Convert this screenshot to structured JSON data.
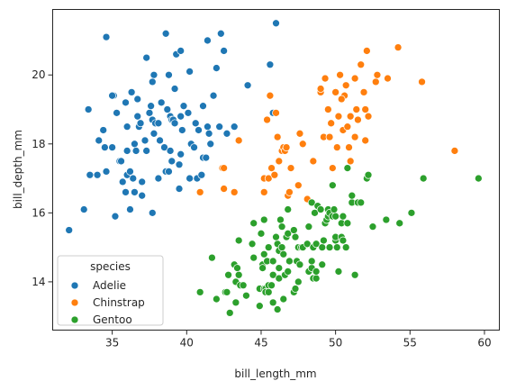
{
  "chart_data": {
    "type": "scatter",
    "xlabel": "bill_length_mm",
    "ylabel": "bill_depth_mm",
    "xlim": [
      31.0,
      61.0
    ],
    "ylim": [
      12.6,
      21.9
    ],
    "xticks": [
      35,
      40,
      45,
      50,
      55,
      60
    ],
    "yticks": [
      14,
      16,
      18,
      20
    ],
    "grid": false,
    "legend": {
      "title": "species",
      "placement": "lower-left",
      "entries": [
        "Adelie",
        "Chinstrap",
        "Gentoo"
      ]
    },
    "series": [
      {
        "name": "Adelie",
        "color": "#1f77b4",
        "points": [
          [
            32.1,
            15.5
          ],
          [
            33.1,
            16.1
          ],
          [
            33.4,
            19.0
          ],
          [
            33.5,
            17.1
          ],
          [
            34.0,
            17.1
          ],
          [
            34.1,
            18.1
          ],
          [
            34.4,
            18.4
          ],
          [
            34.5,
            17.9
          ],
          [
            34.6,
            21.1
          ],
          [
            34.6,
            17.2
          ],
          [
            35.0,
            17.9
          ],
          [
            35.1,
            19.4
          ],
          [
            35.2,
            15.9
          ],
          [
            35.3,
            18.9
          ],
          [
            35.5,
            17.5
          ],
          [
            35.6,
            17.5
          ],
          [
            35.7,
            16.9
          ],
          [
            35.9,
            16.6
          ],
          [
            35.9,
            19.2
          ],
          [
            36.0,
            17.1
          ],
          [
            36.0,
            17.8
          ],
          [
            36.0,
            18.5
          ],
          [
            36.2,
            17.2
          ],
          [
            36.2,
            16.1
          ],
          [
            36.3,
            19.5
          ],
          [
            36.4,
            17.0
          ],
          [
            36.5,
            16.6
          ],
          [
            36.5,
            18.0
          ],
          [
            36.6,
            17.8
          ],
          [
            36.7,
            18.8
          ],
          [
            36.7,
            19.3
          ],
          [
            36.8,
            18.5
          ],
          [
            36.9,
            18.6
          ],
          [
            37.0,
            16.9
          ],
          [
            37.0,
            16.5
          ],
          [
            37.2,
            18.1
          ],
          [
            37.3,
            20.5
          ],
          [
            37.3,
            17.8
          ],
          [
            37.5,
            18.9
          ],
          [
            37.6,
            19.1
          ],
          [
            37.7,
            16.0
          ],
          [
            37.7,
            18.7
          ],
          [
            37.8,
            18.3
          ],
          [
            37.8,
            20.0
          ],
          [
            37.9,
            18.6
          ],
          [
            38.1,
            18.6
          ],
          [
            38.1,
            17.0
          ],
          [
            38.2,
            18.1
          ],
          [
            38.3,
            19.2
          ],
          [
            38.5,
            17.9
          ],
          [
            38.6,
            21.2
          ],
          [
            38.6,
            17.2
          ],
          [
            38.7,
            19.0
          ],
          [
            38.8,
            17.2
          ],
          [
            38.8,
            20.0
          ],
          [
            38.9,
            17.8
          ],
          [
            38.9,
            18.8
          ],
          [
            39.0,
            17.5
          ],
          [
            39.0,
            18.7
          ],
          [
            39.1,
            18.7
          ],
          [
            39.2,
            19.6
          ],
          [
            39.2,
            18.6
          ],
          [
            39.3,
            20.6
          ],
          [
            39.5,
            17.4
          ],
          [
            39.5,
            16.7
          ],
          [
            39.6,
            17.7
          ],
          [
            39.6,
            18.8
          ],
          [
            39.7,
            18.4
          ],
          [
            39.8,
            19.1
          ],
          [
            40.2,
            17.0
          ],
          [
            40.2,
            20.1
          ],
          [
            40.3,
            18.0
          ],
          [
            40.5,
            17.9
          ],
          [
            40.6,
            18.6
          ],
          [
            40.7,
            17.0
          ],
          [
            40.8,
            18.4
          ],
          [
            40.9,
            16.6
          ],
          [
            41.0,
            17.1
          ],
          [
            41.1,
            17.6
          ],
          [
            41.1,
            19.1
          ],
          [
            41.3,
            17.6
          ],
          [
            41.4,
            18.5
          ],
          [
            41.5,
            18.3
          ],
          [
            41.6,
            18.0
          ],
          [
            41.8,
            19.4
          ],
          [
            42.0,
            20.2
          ],
          [
            42.2,
            18.5
          ],
          [
            42.3,
            21.2
          ],
          [
            42.5,
            20.7
          ],
          [
            42.7,
            18.3
          ],
          [
            43.2,
            18.5
          ],
          [
            44.1,
            19.7
          ],
          [
            45.8,
            18.9
          ],
          [
            46.0,
            21.5
          ],
          [
            45.6,
            20.3
          ],
          [
            37.7,
            19.8
          ],
          [
            39.6,
            20.7
          ],
          [
            40.1,
            18.9
          ],
          [
            41.4,
            21.0
          ],
          [
            35.0,
            19.4
          ]
        ]
      },
      {
        "name": "Chinstrap",
        "color": "#ff7f0e",
        "points": [
          [
            40.9,
            16.6
          ],
          [
            42.4,
            17.3
          ],
          [
            42.5,
            16.7
          ],
          [
            42.5,
            17.3
          ],
          [
            43.2,
            16.6
          ],
          [
            43.5,
            18.1
          ],
          [
            45.2,
            16.6
          ],
          [
            45.2,
            17.0
          ],
          [
            45.4,
            18.7
          ],
          [
            45.5,
            17.0
          ],
          [
            45.6,
            19.4
          ],
          [
            45.7,
            17.3
          ],
          [
            45.9,
            17.1
          ],
          [
            46.0,
            18.9
          ],
          [
            46.1,
            18.2
          ],
          [
            46.2,
            17.5
          ],
          [
            46.4,
            17.8
          ],
          [
            46.5,
            17.9
          ],
          [
            46.6,
            17.8
          ],
          [
            46.7,
            17.9
          ],
          [
            46.8,
            16.5
          ],
          [
            46.9,
            16.6
          ],
          [
            47.0,
            17.3
          ],
          [
            47.5,
            16.8
          ],
          [
            47.6,
            18.3
          ],
          [
            48.1,
            16.4
          ],
          [
            48.5,
            17.5
          ],
          [
            49.0,
            19.5
          ],
          [
            49.0,
            19.6
          ],
          [
            49.2,
            18.2
          ],
          [
            49.5,
            19.0
          ],
          [
            49.6,
            18.2
          ],
          [
            49.7,
            18.6
          ],
          [
            49.8,
            17.3
          ],
          [
            50.0,
            19.5
          ],
          [
            50.1,
            17.9
          ],
          [
            50.2,
            18.8
          ],
          [
            50.3,
            20.0
          ],
          [
            50.5,
            18.4
          ],
          [
            50.6,
            19.4
          ],
          [
            50.7,
            19.7
          ],
          [
            50.8,
            18.5
          ],
          [
            50.9,
            17.9
          ],
          [
            51.0,
            18.8
          ],
          [
            51.3,
            18.2
          ],
          [
            51.4,
            19.0
          ],
          [
            51.5,
            18.7
          ],
          [
            51.7,
            20.3
          ],
          [
            51.9,
            19.5
          ],
          [
            52.0,
            18.1
          ],
          [
            52.0,
            19.0
          ],
          [
            52.2,
            18.8
          ],
          [
            52.7,
            19.8
          ],
          [
            53.5,
            19.9
          ],
          [
            54.2,
            20.8
          ],
          [
            55.8,
            19.8
          ],
          [
            58.0,
            17.8
          ],
          [
            49.3,
            19.9
          ],
          [
            50.4,
            19.3
          ],
          [
            52.8,
            20.0
          ],
          [
            51.3,
            19.9
          ],
          [
            52.1,
            20.7
          ],
          [
            51.0,
            17.5
          ],
          [
            47.8,
            18.0
          ]
        ]
      },
      {
        "name": "Gentoo",
        "color": "#2ca02c",
        "points": [
          [
            40.9,
            13.7
          ],
          [
            41.7,
            14.7
          ],
          [
            42.0,
            13.5
          ],
          [
            42.6,
            13.7
          ],
          [
            42.7,
            13.7
          ],
          [
            42.8,
            14.2
          ],
          [
            42.9,
            13.1
          ],
          [
            43.2,
            14.5
          ],
          [
            43.3,
            13.4
          ],
          [
            43.3,
            14.0
          ],
          [
            43.4,
            14.4
          ],
          [
            43.5,
            14.2
          ],
          [
            43.5,
            15.2
          ],
          [
            43.6,
            13.9
          ],
          [
            43.8,
            13.9
          ],
          [
            44.0,
            13.6
          ],
          [
            44.4,
            15.1
          ],
          [
            44.5,
            14.7
          ],
          [
            44.5,
            15.7
          ],
          [
            44.9,
            13.8
          ],
          [
            44.9,
            13.3
          ],
          [
            45.0,
            15.4
          ],
          [
            45.1,
            14.5
          ],
          [
            45.1,
            14.4
          ],
          [
            45.2,
            13.8
          ],
          [
            45.2,
            14.8
          ],
          [
            45.2,
            15.8
          ],
          [
            45.3,
            13.8
          ],
          [
            45.3,
            13.7
          ],
          [
            45.4,
            14.6
          ],
          [
            45.5,
            13.7
          ],
          [
            45.5,
            13.9
          ],
          [
            45.5,
            15.0
          ],
          [
            45.7,
            13.9
          ],
          [
            45.8,
            14.2
          ],
          [
            45.8,
            14.6
          ],
          [
            46.1,
            13.2
          ],
          [
            46.1,
            15.1
          ],
          [
            46.2,
            14.1
          ],
          [
            46.2,
            14.4
          ],
          [
            46.2,
            14.9
          ],
          [
            46.3,
            15.8
          ],
          [
            46.4,
            15.0
          ],
          [
            46.4,
            15.6
          ],
          [
            46.5,
            13.5
          ],
          [
            46.5,
            14.8
          ],
          [
            46.6,
            14.2
          ],
          [
            46.7,
            15.3
          ],
          [
            46.8,
            14.3
          ],
          [
            46.8,
            15.4
          ],
          [
            46.8,
            16.1
          ],
          [
            46.9,
            14.6
          ],
          [
            47.2,
            13.7
          ],
          [
            47.2,
            15.5
          ],
          [
            47.3,
            15.3
          ],
          [
            47.4,
            14.6
          ],
          [
            47.5,
            14.0
          ],
          [
            47.5,
            15.0
          ],
          [
            47.6,
            14.5
          ],
          [
            47.7,
            15.0
          ],
          [
            47.8,
            15.0
          ],
          [
            48.1,
            15.1
          ],
          [
            48.2,
            14.3
          ],
          [
            48.2,
            15.6
          ],
          [
            48.4,
            14.4
          ],
          [
            48.4,
            14.6
          ],
          [
            48.4,
            16.3
          ],
          [
            48.5,
            14.1
          ],
          [
            48.5,
            15.0
          ],
          [
            48.6,
            16.0
          ],
          [
            48.7,
            14.1
          ],
          [
            48.7,
            15.1
          ],
          [
            48.8,
            16.2
          ],
          [
            49.0,
            16.1
          ],
          [
            49.1,
            14.5
          ],
          [
            49.1,
            15.0
          ],
          [
            49.2,
            15.2
          ],
          [
            49.3,
            15.7
          ],
          [
            49.4,
            15.8
          ],
          [
            49.5,
            15.9
          ],
          [
            49.5,
            16.1
          ],
          [
            49.6,
            15.0
          ],
          [
            49.6,
            16.0
          ],
          [
            49.8,
            15.9
          ],
          [
            49.8,
            16.8
          ],
          [
            49.9,
            16.1
          ],
          [
            50.0,
            15.2
          ],
          [
            50.0,
            15.3
          ],
          [
            50.0,
            15.9
          ],
          [
            50.1,
            15.0
          ],
          [
            50.2,
            14.3
          ],
          [
            50.4,
            15.3
          ],
          [
            50.4,
            15.7
          ],
          [
            50.5,
            15.2
          ],
          [
            50.5,
            15.9
          ],
          [
            50.7,
            15.0
          ],
          [
            50.8,
            15.7
          ],
          [
            50.8,
            17.3
          ],
          [
            51.1,
            16.3
          ],
          [
            51.1,
            16.5
          ],
          [
            51.3,
            14.2
          ],
          [
            51.5,
            16.3
          ],
          [
            51.7,
            16.3
          ],
          [
            52.1,
            17.0
          ],
          [
            52.2,
            17.1
          ],
          [
            52.5,
            15.6
          ],
          [
            53.4,
            15.8
          ],
          [
            54.3,
            15.7
          ],
          [
            55.1,
            16.0
          ],
          [
            55.9,
            17.0
          ],
          [
            59.6,
            17.0
          ],
          [
            47.3,
            13.8
          ],
          [
            48.7,
            14.3
          ],
          [
            45.8,
            13.4
          ],
          [
            46.0,
            15.3
          ]
        ]
      }
    ]
  }
}
